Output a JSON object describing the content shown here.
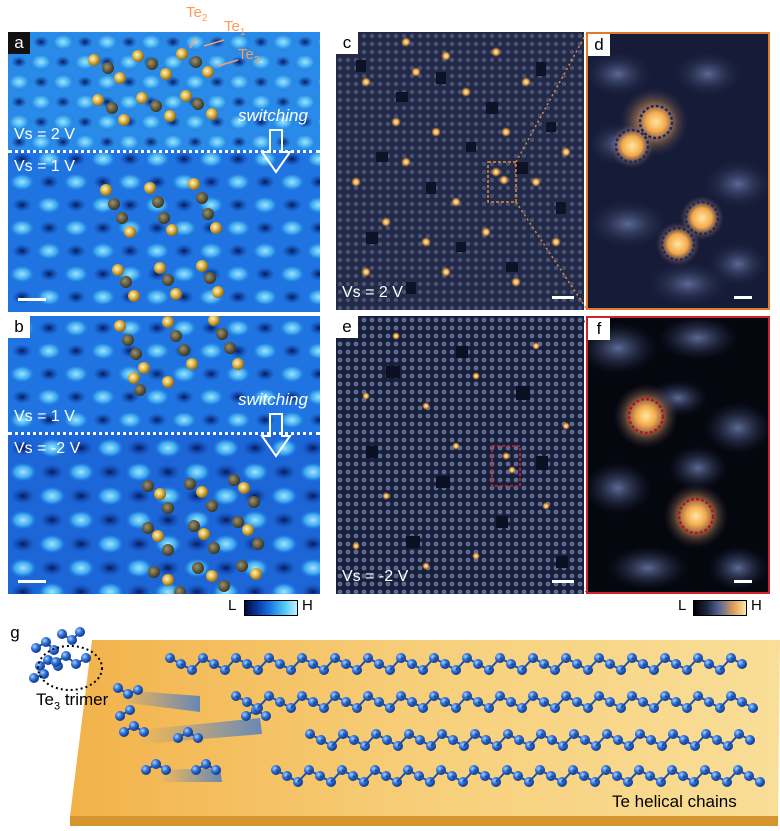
{
  "panels": {
    "a": {
      "label": "a",
      "vs_top": "Vs = 2 V",
      "vs_bottom": "Vs = 1 V",
      "switching": "switching"
    },
    "b": {
      "label": "b",
      "vs_top": "Vs = 1 V",
      "vs_bottom": "Vs = -2 V",
      "switching": "switching"
    },
    "c": {
      "label": "c",
      "vs": "Vs = 2 V"
    },
    "d": {
      "label": "d"
    },
    "e": {
      "label": "e",
      "vs": "Vs = -2 V"
    },
    "f": {
      "label": "f"
    },
    "g": {
      "label": "g",
      "trimer_label": "Te",
      "trimer_sub": "3",
      "trimer_suffix": " trimer",
      "chains_label": "Te helical chains"
    }
  },
  "atom_labels": {
    "te2": {
      "base": "Te",
      "sub": "2"
    },
    "te1": {
      "base": "Te",
      "sub": "1"
    },
    "te3": {
      "base": "Te",
      "sub": "3"
    }
  },
  "colorbars": {
    "blue": {
      "low": "L",
      "high": "H"
    },
    "orange": {
      "low": "L",
      "high": "H"
    }
  },
  "colors": {
    "blue_bg": "#1c6fe0",
    "dark_bg": "#1e2644",
    "orange_frame": "#e07a2a",
    "red_frame": "#d0222a",
    "atom_blue": "#2e6fd8"
  }
}
